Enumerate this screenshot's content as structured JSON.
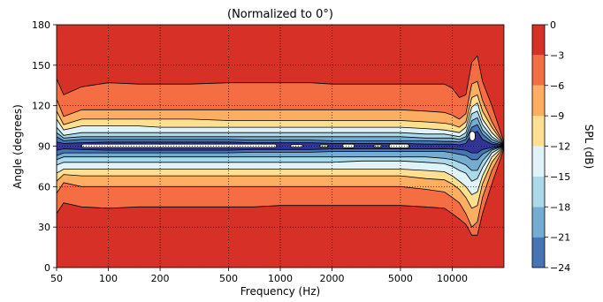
{
  "chart_data": {
    "type": "contourf",
    "title": "(Normalized to 0°)",
    "xlabel": "Frequency (Hz)",
    "ylabel": "Angle (degrees)",
    "x_scale": "log",
    "xlim": [
      50,
      20000
    ],
    "ylim": [
      0,
      180
    ],
    "x_ticks": [
      {
        "value": 50,
        "label": "50"
      },
      {
        "value": 100,
        "label": "100"
      },
      {
        "value": 200,
        "label": "200"
      },
      {
        "value": 500,
        "label": "500"
      },
      {
        "value": 1000,
        "label": "1000"
      },
      {
        "value": 2000,
        "label": "2000"
      },
      {
        "value": 5000,
        "label": "5000"
      },
      {
        "value": 10000,
        "label": "10000"
      }
    ],
    "y_ticks": [
      {
        "value": 0,
        "label": "0"
      },
      {
        "value": 30,
        "label": "30"
      },
      {
        "value": 60,
        "label": "60"
      },
      {
        "value": 90,
        "label": "90"
      },
      {
        "value": 120,
        "label": "120"
      },
      {
        "value": 150,
        "label": "150"
      },
      {
        "value": 180,
        "label": "180"
      }
    ],
    "grid": true,
    "colorbar": {
      "label": "SPL (dB)",
      "levels": [
        -24,
        -21,
        -18,
        -15,
        -12,
        -9,
        -6,
        -3,
        0
      ],
      "tick_labels": [
        "−24",
        "−21",
        "−18",
        "−15",
        "−12",
        "−9",
        "−6",
        "−3",
        "0"
      ],
      "colors": [
        "#4575b4",
        "#74add1",
        "#abd9e9",
        "#e0f3f8",
        "#fee090",
        "#fdae61",
        "#f46d43",
        "#d73027"
      ],
      "lowest_color": "#313695",
      "below_range_color": "#ffffff"
    },
    "contour_bounds": {
      "freqs": [
        50,
        55,
        70,
        100,
        150,
        200,
        300,
        500,
        700,
        1000,
        1500,
        2000,
        3000,
        5000,
        7000,
        9000,
        10000,
        11000,
        12000,
        13000,
        14000,
        15000,
        17000,
        20000
      ],
      "levels": [
        {
          "level": -3,
          "upper": [
            140,
            128,
            134,
            137,
            136,
            136,
            136,
            137,
            137,
            137,
            137,
            136,
            136,
            136,
            136,
            136,
            133,
            126,
            128,
            152,
            157,
            138,
            120,
            93
          ],
          "lower": [
            40,
            48,
            45,
            44,
            45,
            45,
            45,
            45,
            45,
            46,
            46,
            46,
            46,
            46,
            45,
            44,
            40,
            36,
            32,
            24,
            24,
            40,
            62,
            88
          ]
        },
        {
          "level": -6,
          "upper": [
            125,
            112,
            117,
            117,
            117,
            117,
            117,
            117,
            117,
            117,
            117,
            117,
            117,
            117,
            116,
            115,
            113,
            110,
            114,
            136,
            138,
            124,
            108,
            92
          ],
          "lower": [
            55,
            63,
            60,
            60,
            60,
            60,
            60,
            60,
            60,
            60,
            60,
            60,
            60,
            60,
            58,
            56,
            52,
            48,
            40,
            30,
            34,
            52,
            72,
            89
          ]
        },
        {
          "level": -9,
          "upper": [
            116,
            106,
            110,
            110,
            110,
            110,
            110,
            109,
            109,
            109,
            109,
            109,
            109,
            109,
            108,
            107,
            106,
            104,
            108,
            126,
            128,
            116,
            104,
            91.5
          ],
          "lower": [
            64,
            69,
            68,
            68,
            68,
            68,
            68,
            68,
            68,
            68,
            68,
            68,
            68,
            68,
            66,
            65,
            62,
            58,
            52,
            44,
            46,
            62,
            78,
            89.5
          ]
        },
        {
          "level": -12,
          "upper": [
            110,
            102,
            105,
            105,
            105,
            104,
            104,
            104,
            104,
            104,
            104,
            104,
            104,
            104,
            103,
            102,
            101,
            100,
            104,
            119,
            122,
            110,
            100,
            91.2
          ],
          "lower": [
            70,
            73,
            73,
            73,
            73,
            73,
            73,
            73,
            73,
            73,
            73,
            73,
            73,
            73,
            72,
            71,
            68,
            64,
            60,
            54,
            56,
            68,
            82,
            89.8
          ]
        },
        {
          "level": -15,
          "upper": [
            104,
            98,
            100,
            100,
            100,
            100,
            100,
            100,
            100,
            100,
            100,
            100,
            100,
            100,
            99,
            99,
            98,
            97,
            100,
            114,
            116,
            106,
            97,
            91
          ],
          "lower": [
            76,
            78,
            78,
            78,
            78,
            78,
            78,
            78,
            78,
            78,
            78,
            78,
            79,
            79,
            78,
            77,
            75,
            72,
            70,
            64,
            66,
            74,
            85,
            90
          ]
        },
        {
          "level": -18,
          "upper": [
            100,
            96,
            97,
            97,
            97,
            97,
            97,
            97,
            97,
            97,
            97,
            97,
            97,
            97,
            96,
            96,
            96,
            95,
            97,
            109,
            111,
            102,
            95,
            90.8
          ],
          "lower": [
            80,
            82,
            82,
            82,
            82,
            82,
            82,
            82,
            82,
            82,
            82,
            82,
            82,
            82,
            82,
            81,
            80,
            78,
            76,
            72,
            72,
            79,
            87,
            90.2
          ]
        },
        {
          "level": -21,
          "upper": [
            97,
            94,
            95,
            95,
            95,
            95,
            95,
            95,
            94.5,
            94.5,
            94.5,
            94,
            94,
            94,
            94,
            93.5,
            93.5,
            93,
            95,
            104,
            106,
            99,
            93,
            90.6
          ],
          "lower": [
            83,
            85,
            85,
            85,
            85,
            85,
            85,
            85,
            85.5,
            85.5,
            85.5,
            86,
            86,
            86,
            86,
            86,
            85,
            84,
            83,
            80,
            80,
            84,
            88,
            90.3
          ]
        },
        {
          "level": -24,
          "upper": [
            93,
            92,
            92.5,
            93,
            93,
            93,
            93,
            93,
            92.5,
            92.5,
            92.5,
            92,
            92,
            92,
            91.5,
            91.5,
            91.5,
            91,
            92,
            99,
            101,
            95,
            91.5,
            90.5
          ],
          "lower": [
            87,
            88,
            87.5,
            87,
            87,
            87,
            87,
            87,
            87.5,
            87.5,
            87.5,
            88,
            88,
            88,
            88,
            88.2,
            88,
            87.5,
            87,
            85,
            85,
            87.5,
            89,
            90.4
          ]
        }
      ],
      "below_range_bands": [
        {
          "f1": 70,
          "f2": 950,
          "upper": 91.5,
          "lower": 89
        },
        {
          "f1": 1150,
          "f2": 1350,
          "upper": 91.2,
          "lower": 89.2
        },
        {
          "f1": 1700,
          "f2": 1900,
          "upper": 91,
          "lower": 89.3
        },
        {
          "f1": 2300,
          "f2": 2700,
          "upper": 91.5,
          "lower": 88.8
        },
        {
          "f1": 3500,
          "f2": 3900,
          "upper": 91,
          "lower": 89.2
        },
        {
          "f1": 4300,
          "f2": 5600,
          "upper": 91.5,
          "lower": 88.7
        },
        {
          "f1": 12600,
          "f2": 13600,
          "upper": 101,
          "lower": 94
        }
      ]
    }
  }
}
